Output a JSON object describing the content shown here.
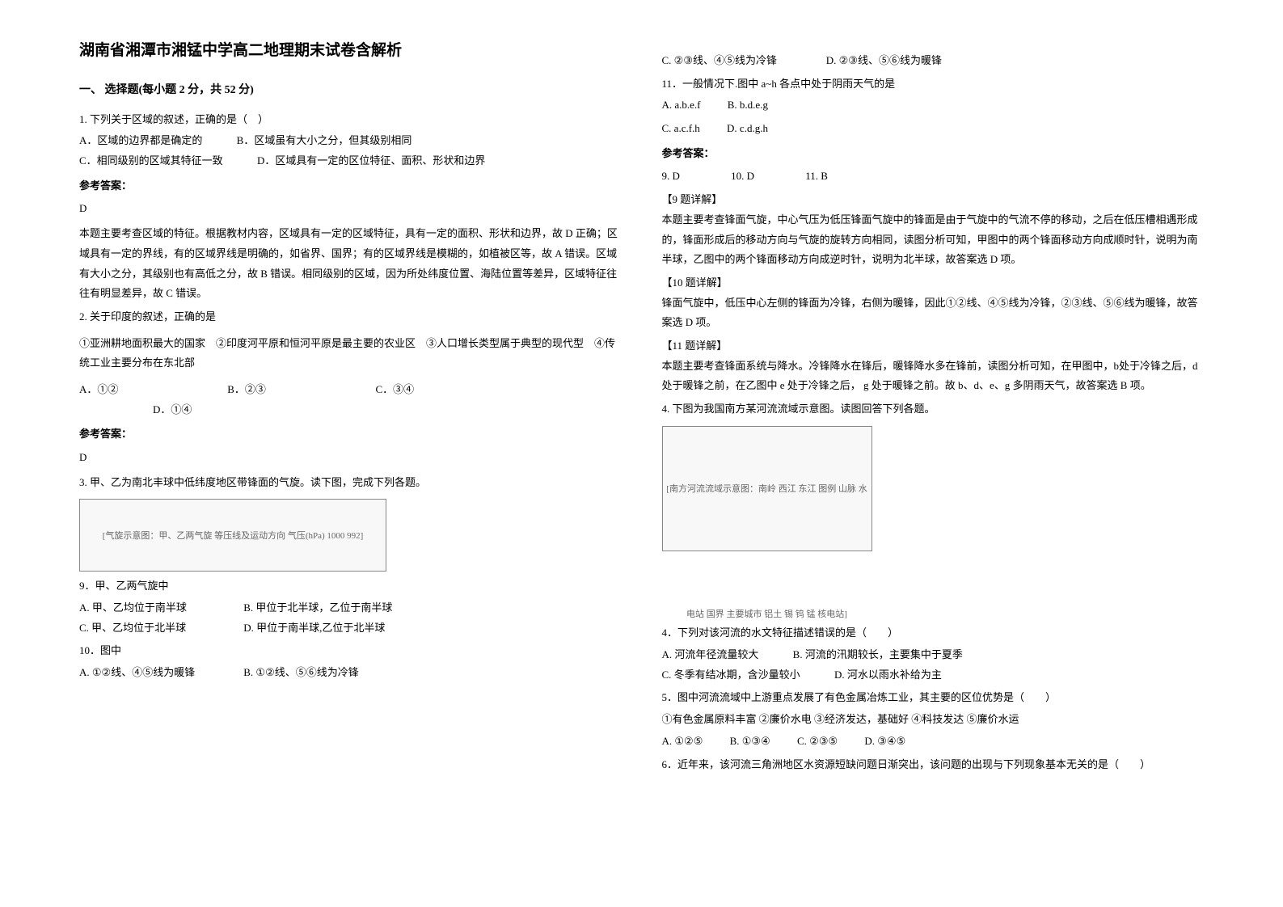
{
  "title": "湖南省湘潭市湘锰中学高二地理期末试卷含解析",
  "section1": "一、 选择题(每小题 2 分，共 52 分)",
  "q1": {
    "text": "1. 下列关于区域的叙述，正确的是（　）",
    "optA": "A．区域的边界都是确定的",
    "optB": "B．区域虽有大小之分，但其级别相同",
    "optC": "C．相同级别的区域其特征一致",
    "optD": "D．区域具有一定的区位特征、面积、形状和边界",
    "answerLabel": "参考答案：",
    "answer": "D",
    "explanation": "本题主要考查区域的特征。根据教材内容，区域具有一定的区域特征，具有一定的面积、形状和边界，故 D 正确；区域具有一定的界线，有的区域界线是明确的，如省界、国界；有的区域界线是模糊的，如植被区等，故 A 错误。区域有大小之分，其级别也有高低之分，故 B 错误。相同级别的区域，因为所处纬度位置、海陆位置等差异，区域特征往往有明显差异，故 C 错误。"
  },
  "q2": {
    "text": "2. 关于印度的叙述，正确的是",
    "stem": "①亚洲耕地面积最大的国家　②印度河平原和恒河平原是最主要的农业区　③人口增长类型属于典型的现代型　④传统工业主要分布在东北部",
    "optA": "A．①②",
    "optB": "B．②③",
    "optC": "C．③④",
    "optD": "D．①④",
    "answerLabel": "参考答案：",
    "answer": "D"
  },
  "q3": {
    "text": "3. 甲、乙为南北丰球中低纬度地区带锋面的气旋。读下图，完成下列各题。",
    "chartLabel": "[气旋示意图：甲、乙两气旋 等压线及运动方向 气压(hPa) 1000 992]",
    "q9text": "9．甲、乙两气旋中",
    "q9A": "A. 甲、乙均位于南半球",
    "q9B": "B. 甲位于北半球，乙位于南半球",
    "q9C": "C. 甲、乙均位于北半球",
    "q9D": "D. 甲位于南半球,乙位于北半球",
    "q10text": "10．图中",
    "q10A": "A. ①②线、④⑤线为暖锋",
    "q10B": "B. ①②线、⑤⑥线为冷锋",
    "q10C": "C. ②③线、④⑤线为冷锋",
    "q10D": "D. ②③线、⑤⑥线为暖锋",
    "q11text": "11．一般情况下.图中 a~h 各点中处于阴雨天气的是",
    "q11A": "A. a.b.e.f",
    "q11B": "B. b.d.e.g",
    "q11C": "C. a.c.f.h",
    "q11D": "D. c.d.g.h",
    "answerLabel": "参考答案：",
    "ans9": "9. D",
    "ans10": "10. D",
    "ans11": "11. B",
    "det9h": "【9 题详解】",
    "det9": "本题主要考查锋面气旋，中心气压为低压锋面气旋中的锋面是由于气旋中的气流不停的移动，之后在低压槽相遇形成的，锋面形成后的移动方向与气旋的旋转方向相同，读图分析可知，甲图中的两个锋面移动方向成顺时针，说明为南半球，乙图中的两个锋面移动方向成逆时针，说明为北半球，故答案选 D 项。",
    "det10h": "【10 题详解】",
    "det10": "锋面气旋中，低压中心左侧的锋面为冷锋，右侧为暖锋，因此①②线、④⑤线为冷锋，②③线、⑤⑥线为暖锋，故答案选 D 项。",
    "det11h": "【11 题详解】",
    "det11": "本题主要考查锋面系统与降水。冷锋降水在锋后，暖锋降水多在锋前，读图分析可知，在甲图中，b处于冷锋之后，d 处于暖锋之前，在乙图中 e 处于冷锋之后， g 处于暖锋之前。故 b、d、e、g 多阴雨天气，故答案选 B 项。"
  },
  "q4": {
    "text": "4. 下图为我国南方某河流流域示意图。读图回答下列各题。",
    "chartLabel": "[南方河流流域示意图：南岭 西江 东江 图例 山脉 水电站 国界 主要城市 铝土 锡 钨 锰 核电站]",
    "q4text": "4．下列对该河流的水文特征描述错误的是（　　）",
    "q4A": "A. 河流年径流量较大",
    "q4B": "B. 河流的汛期较长，主要集中于夏季",
    "q4C": "C. 冬季有结冰期，含沙量较小",
    "q4D": "D. 河水以雨水补给为主",
    "q5text": "5．图中河流流域中上游重点发展了有色金属冶炼工业，其主要的区位优势是（　　）",
    "q5stem": "①有色金属原料丰富  ②廉价水电  ③经济发达，基础好  ④科技发达  ⑤廉价水运",
    "q5A": "A. ①②⑤",
    "q5B": "B. ①③④",
    "q5C": "C. ②③⑤",
    "q5D": "D. ③④⑤",
    "q6text": "6．近年来，该河流三角洲地区水资源短缺问题日渐突出，该问题的出现与下列现象基本无关的是（　　）"
  }
}
